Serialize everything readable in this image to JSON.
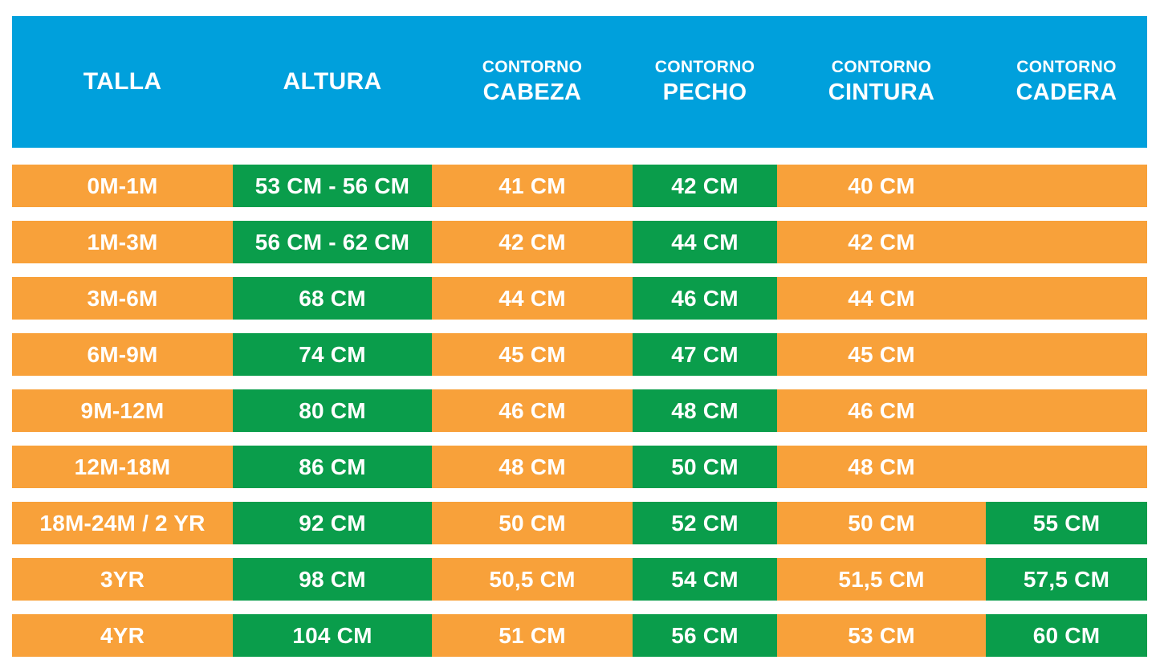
{
  "colors": {
    "header_bg": "#00A0DC",
    "cell_orange": "#F8A13A",
    "cell_green": "#0A9D4B",
    "text": "#FFFFFF",
    "page_bg": "#FFFFFF"
  },
  "table": {
    "headers": [
      {
        "key": "talla",
        "top": "",
        "main": "TALLA"
      },
      {
        "key": "altura",
        "top": "",
        "main": "ALTURA"
      },
      {
        "key": "cabeza",
        "top": "CONTORNO",
        "main": "CABEZA"
      },
      {
        "key": "pecho",
        "top": "CONTORNO",
        "main": "PECHO"
      },
      {
        "key": "cintura",
        "top": "CONTORNO",
        "main": "CINTURA"
      },
      {
        "key": "cadera",
        "top": "CONTORNO",
        "main": "CADERA"
      }
    ],
    "rows": [
      {
        "cells": [
          {
            "text": "0M-1M",
            "green": false
          },
          {
            "text": "53 CM - 56 CM",
            "green": true
          },
          {
            "text": "41 CM",
            "green": false
          },
          {
            "text": "42 CM",
            "green": true
          },
          {
            "text": "40 CM",
            "green": false
          },
          {
            "text": "",
            "green": false
          }
        ]
      },
      {
        "cells": [
          {
            "text": "1M-3M",
            "green": false
          },
          {
            "text": "56 CM - 62 CM",
            "green": true
          },
          {
            "text": "42 CM",
            "green": false
          },
          {
            "text": "44 CM",
            "green": true
          },
          {
            "text": "42 CM",
            "green": false
          },
          {
            "text": "",
            "green": false
          }
        ]
      },
      {
        "cells": [
          {
            "text": "3M-6M",
            "green": false
          },
          {
            "text": "68 CM",
            "green": true
          },
          {
            "text": "44 CM",
            "green": false
          },
          {
            "text": "46 CM",
            "green": true
          },
          {
            "text": "44 CM",
            "green": false
          },
          {
            "text": "",
            "green": false
          }
        ]
      },
      {
        "cells": [
          {
            "text": "6M-9M",
            "green": false
          },
          {
            "text": "74 CM",
            "green": true
          },
          {
            "text": "45 CM",
            "green": false
          },
          {
            "text": "47 CM",
            "green": true
          },
          {
            "text": "45 CM",
            "green": false
          },
          {
            "text": "",
            "green": false
          }
        ]
      },
      {
        "cells": [
          {
            "text": "9M-12M",
            "green": false
          },
          {
            "text": "80 CM",
            "green": true
          },
          {
            "text": "46 CM",
            "green": false
          },
          {
            "text": "48 CM",
            "green": true
          },
          {
            "text": "46 CM",
            "green": false
          },
          {
            "text": "",
            "green": false
          }
        ]
      },
      {
        "cells": [
          {
            "text": "12M-18M",
            "green": false
          },
          {
            "text": "86 CM",
            "green": true
          },
          {
            "text": "48 CM",
            "green": false
          },
          {
            "text": "50 CM",
            "green": true
          },
          {
            "text": "48 CM",
            "green": false
          },
          {
            "text": "",
            "green": false
          }
        ]
      },
      {
        "cells": [
          {
            "text": "18M-24M / 2 YR",
            "green": false
          },
          {
            "text": "92 CM",
            "green": true
          },
          {
            "text": "50 CM",
            "green": false
          },
          {
            "text": "52 CM",
            "green": true
          },
          {
            "text": "50 CM",
            "green": false
          },
          {
            "text": "55 CM",
            "green": true
          }
        ]
      },
      {
        "cells": [
          {
            "text": "3YR",
            "green": false
          },
          {
            "text": "98 CM",
            "green": true
          },
          {
            "text": "50,5 CM",
            "green": false
          },
          {
            "text": "54 CM",
            "green": true
          },
          {
            "text": "51,5 CM",
            "green": false
          },
          {
            "text": "57,5 CM",
            "green": true
          }
        ]
      },
      {
        "cells": [
          {
            "text": "4YR",
            "green": false
          },
          {
            "text": "104 CM",
            "green": true
          },
          {
            "text": "51 CM",
            "green": false
          },
          {
            "text": "56 CM",
            "green": true
          },
          {
            "text": "53 CM",
            "green": false
          },
          {
            "text": "60 CM",
            "green": true
          }
        ]
      }
    ]
  },
  "chart_data": {
    "type": "table",
    "title": "",
    "columns": [
      "TALLA",
      "ALTURA",
      "CONTORNO CABEZA",
      "CONTORNO PECHO",
      "CONTORNO CINTURA",
      "CONTORNO CADERA"
    ],
    "rows": [
      [
        "0M-1M",
        "53 CM - 56 CM",
        "41 CM",
        "42 CM",
        "40 CM",
        ""
      ],
      [
        "1M-3M",
        "56 CM - 62 CM",
        "42 CM",
        "44 CM",
        "42 CM",
        ""
      ],
      [
        "3M-6M",
        "68 CM",
        "44 CM",
        "46 CM",
        "44 CM",
        ""
      ],
      [
        "6M-9M",
        "74 CM",
        "45 CM",
        "47 CM",
        "45 CM",
        ""
      ],
      [
        "9M-12M",
        "80 CM",
        "46 CM",
        "48 CM",
        "46 CM",
        ""
      ],
      [
        "12M-18M",
        "86 CM",
        "48 CM",
        "50 CM",
        "48 CM",
        ""
      ],
      [
        "18M-24M / 2 YR",
        "92 CM",
        "50 CM",
        "52 CM",
        "50 CM",
        "55 CM"
      ],
      [
        "3YR",
        "98 CM",
        "50,5 CM",
        "54 CM",
        "51,5 CM",
        "57,5 CM"
      ],
      [
        "4YR",
        "104 CM",
        "51 CM",
        "56 CM",
        "53 CM",
        "60 CM"
      ]
    ],
    "highlight_green_columns_all_rows": [
      "ALTURA",
      "CONTORNO PECHO"
    ],
    "highlight_green_cadera_rows": [
      "18M-24M / 2 YR",
      "3YR",
      "4YR"
    ]
  }
}
